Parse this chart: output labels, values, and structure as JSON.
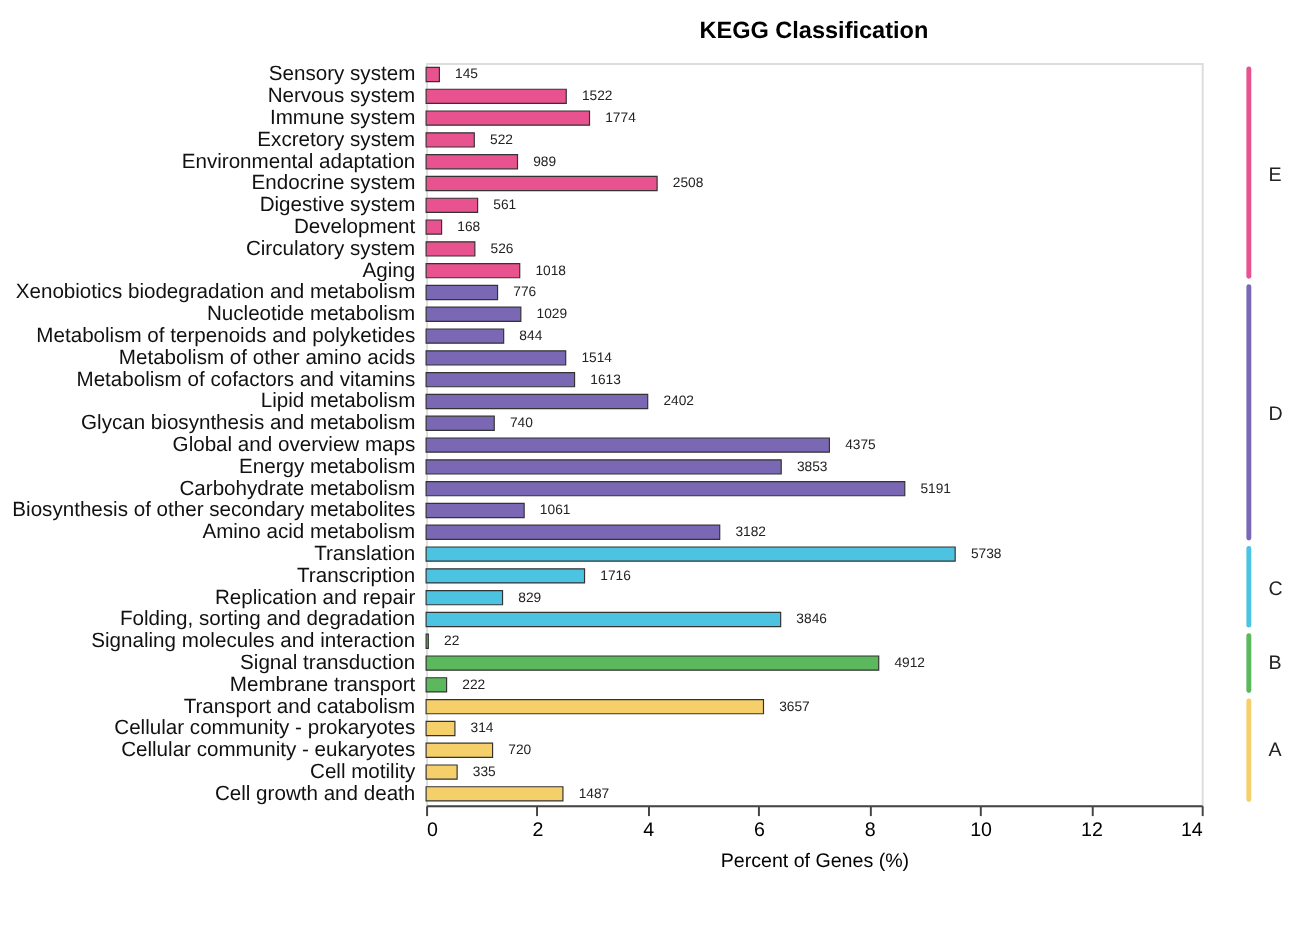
{
  "chart_data": {
    "type": "bar",
    "orientation": "horizontal",
    "title": "KEGG Classification",
    "xlabel": "Percent of Genes (%)",
    "categories": [
      "Sensory system",
      "Nervous system",
      "Immune system",
      "Excretory system",
      "Environmental adaptation",
      "Endocrine system",
      "Digestive system",
      "Development",
      "Circulatory system",
      "Aging",
      "Xenobiotics biodegradation and metabolism",
      "Nucleotide metabolism",
      "Metabolism of terpenoids and polyketides",
      "Metabolism of other amino acids",
      "Metabolism of cofactors and vitamins",
      "Lipid metabolism",
      "Glycan biosynthesis and metabolism",
      "Global and overview maps",
      "Energy metabolism",
      "Carbohydrate metabolism",
      "Biosynthesis of other secondary metabolites",
      "Amino acid metabolism",
      "Translation",
      "Transcription",
      "Replication and repair",
      "Folding, sorting and degradation",
      "Signaling molecules and interaction",
      "Signal transduction",
      "Membrane transport",
      "Transport and catabolism",
      "Cellular community - prokaryotes",
      "Cellular community - eukaryotes",
      "Cell motility",
      "Cell growth and death"
    ],
    "values": [
      0.24,
      2.53,
      2.95,
      0.87,
      1.65,
      4.17,
      0.93,
      0.28,
      0.88,
      1.69,
      1.29,
      1.71,
      1.4,
      2.52,
      2.68,
      4.0,
      1.23,
      7.28,
      6.41,
      8.64,
      1.77,
      5.3,
      9.55,
      2.86,
      1.38,
      6.4,
      0.04,
      8.17,
      0.37,
      6.09,
      0.52,
      1.2,
      0.56,
      2.47
    ],
    "colors": [
      "#e8528f",
      "#e8528f",
      "#e8528f",
      "#e8528f",
      "#e8528f",
      "#e8528f",
      "#e8528f",
      "#e8528f",
      "#e8528f",
      "#e8528f",
      "#7a68b5",
      "#7a68b5",
      "#7a68b5",
      "#7a68b5",
      "#7a68b5",
      "#7a68b5",
      "#7a68b5",
      "#7a68b5",
      "#7a68b5",
      "#7a68b5",
      "#7a68b5",
      "#7a68b5",
      "#4cc3e0",
      "#4cc3e0",
      "#4cc3e0",
      "#4cc3e0",
      "#5cb85c",
      "#5cb85c",
      "#5cb85c",
      "#f5d06a",
      "#f5d06a",
      "#f5d06a",
      "#f5d06a",
      "#f5d06a"
    ],
    "xlim": [
      0,
      14
    ],
    "xticks": [
      0,
      2,
      4,
      6,
      8,
      10,
      12,
      14
    ],
    "grid": false,
    "annotations": [
      {
        "text": "145",
        "x": 0.24,
        "y": "Sensory system"
      },
      {
        "text": "1522",
        "x": 2.53,
        "y": "Nervous system"
      },
      {
        "text": "1774",
        "x": 2.95,
        "y": "Immune system"
      },
      {
        "text": "522",
        "x": 0.87,
        "y": "Excretory system"
      },
      {
        "text": "989",
        "x": 1.65,
        "y": "Environmental adaptation"
      },
      {
        "text": "2508",
        "x": 4.17,
        "y": "Endocrine system"
      },
      {
        "text": "561",
        "x": 0.93,
        "y": "Digestive system"
      },
      {
        "text": "168",
        "x": 0.28,
        "y": "Development"
      },
      {
        "text": "526",
        "x": 0.88,
        "y": "Circulatory system"
      },
      {
        "text": "1018",
        "x": 1.69,
        "y": "Aging"
      },
      {
        "text": "776",
        "x": 1.29,
        "y": "Xenobiotics biodegradation and metabolism"
      },
      {
        "text": "1029",
        "x": 1.71,
        "y": "Nucleotide metabolism"
      },
      {
        "text": "844",
        "x": 1.4,
        "y": "Metabolism of terpenoids and polyketides"
      },
      {
        "text": "1514",
        "x": 2.52,
        "y": "Metabolism of other amino acids"
      },
      {
        "text": "1613",
        "x": 2.68,
        "y": "Metabolism of cofactors and vitamins"
      },
      {
        "text": "2402",
        "x": 4.0,
        "y": "Lipid metabolism"
      },
      {
        "text": "740",
        "x": 1.23,
        "y": "Glycan biosynthesis and metabolism"
      },
      {
        "text": "4375",
        "x": 7.28,
        "y": "Global and overview maps"
      },
      {
        "text": "3853",
        "x": 6.41,
        "y": "Energy metabolism"
      },
      {
        "text": "5191",
        "x": 8.64,
        "y": "Carbohydrate metabolism"
      },
      {
        "text": "1061",
        "x": 1.77,
        "y": "Biosynthesis of other secondary metabolites"
      },
      {
        "text": "3182",
        "x": 5.3,
        "y": "Amino acid metabolism"
      },
      {
        "text": "5738",
        "x": 9.55,
        "y": "Translation"
      },
      {
        "text": "1716",
        "x": 2.86,
        "y": "Transcription"
      },
      {
        "text": "829",
        "x": 1.38,
        "y": "Replication and repair"
      },
      {
        "text": "3846",
        "x": 6.4,
        "y": "Folding, sorting and degradation"
      },
      {
        "text": "22",
        "x": 0.04,
        "y": "Signaling molecules and interaction"
      },
      {
        "text": "4912",
        "x": 8.17,
        "y": "Signal transduction"
      },
      {
        "text": "222",
        "x": 0.37,
        "y": "Membrane transport"
      },
      {
        "text": "3657",
        "x": 6.09,
        "y": "Transport and catabolism"
      },
      {
        "text": "314",
        "x": 0.52,
        "y": "Cellular community - prokaryotes"
      },
      {
        "text": "720",
        "x": 1.2,
        "y": "Cellular community - eukaryotes"
      },
      {
        "text": "335",
        "x": 0.56,
        "y": "Cell motility"
      },
      {
        "text": "1487",
        "x": 2.47,
        "y": "Cell growth and death"
      },
      "E",
      "D",
      "C",
      "B",
      "A"
    ]
  }
}
